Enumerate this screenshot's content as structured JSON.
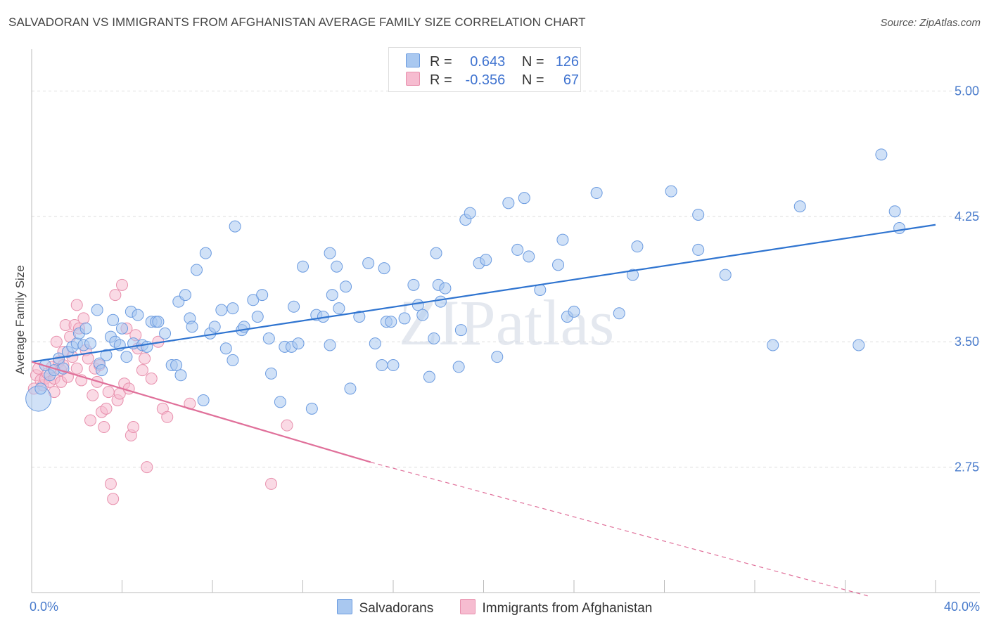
{
  "title": "SALVADORAN VS IMMIGRANTS FROM AFGHANISTAN AVERAGE FAMILY SIZE CORRELATION CHART",
  "source": "Source: ZipAtlas.com",
  "watermark": "ZIPatlas",
  "legend": {
    "r_label": "R =",
    "n_label": "N =",
    "rows": [
      {
        "r": "0.643",
        "n": "126",
        "color": "#a9c8f0"
      },
      {
        "r": "-0.356",
        "n": "67",
        "color": "#f6bcd0"
      }
    ]
  },
  "bottom_legend": [
    "Salvadorans",
    "Immigrants from Afghanistan"
  ],
  "colors": {
    "blue_fill": "#a9c8f0",
    "blue_stroke": "#6b9be0",
    "blue_line": "#2f74d0",
    "pink_fill": "#f6bcd0",
    "pink_stroke": "#e890ad",
    "pink_line": "#e0709a",
    "tick_text": "#4a7ccc",
    "grid": "#dddddd"
  },
  "chart_data": {
    "type": "scatter",
    "title": "SALVADORAN VS IMMIGRANTS FROM AFGHANISTAN AVERAGE FAMILY SIZE CORRELATION CHART",
    "xlabel": "",
    "ylabel": "Average Family Size",
    "xlim": [
      0,
      40
    ],
    "ylim": [
      2.0,
      5.25
    ],
    "x_tick_labels": [
      "0.0%",
      "40.0%"
    ],
    "y_ticks": [
      2.75,
      3.5,
      4.25,
      5.0
    ],
    "y_tick_labels": [
      "2.75",
      "3.50",
      "4.25",
      "5.00"
    ],
    "series": [
      {
        "name": "Salvadorans",
        "r": 0.643,
        "n": 126,
        "trend": {
          "x": [
            0,
            40
          ],
          "y": [
            3.38,
            4.2
          ],
          "dashed_to": null
        },
        "points": [
          [
            0.3,
            3.16,
            "l"
          ],
          [
            0.4,
            3.22
          ],
          [
            0.6,
            3.36
          ],
          [
            0.8,
            3.3
          ],
          [
            1.0,
            3.33
          ],
          [
            1.2,
            3.4
          ],
          [
            1.4,
            3.34
          ],
          [
            1.6,
            3.44
          ],
          [
            1.8,
            3.47
          ],
          [
            2.0,
            3.49
          ],
          [
            2.1,
            3.55
          ],
          [
            2.3,
            3.48
          ],
          [
            2.4,
            3.58
          ],
          [
            2.6,
            3.49
          ],
          [
            2.9,
            3.69
          ],
          [
            3.0,
            3.37
          ],
          [
            3.1,
            3.33
          ],
          [
            3.3,
            3.42
          ],
          [
            3.5,
            3.53
          ],
          [
            3.6,
            3.63
          ],
          [
            3.7,
            3.5
          ],
          [
            3.9,
            3.48
          ],
          [
            4.0,
            3.58
          ],
          [
            4.2,
            3.41
          ],
          [
            4.4,
            3.68
          ],
          [
            4.5,
            3.49
          ],
          [
            4.7,
            3.66
          ],
          [
            4.9,
            3.48
          ],
          [
            5.1,
            3.47
          ],
          [
            5.3,
            3.62
          ],
          [
            5.5,
            3.62
          ],
          [
            5.6,
            3.62
          ],
          [
            5.9,
            3.55
          ],
          [
            6.2,
            3.36
          ],
          [
            6.4,
            3.36
          ],
          [
            6.5,
            3.74
          ],
          [
            6.6,
            3.3
          ],
          [
            6.8,
            3.78
          ],
          [
            7.0,
            3.64
          ],
          [
            7.1,
            3.59
          ],
          [
            7.3,
            3.93
          ],
          [
            7.6,
            3.15
          ],
          [
            7.7,
            4.03
          ],
          [
            7.9,
            3.55
          ],
          [
            8.1,
            3.59
          ],
          [
            8.4,
            3.69
          ],
          [
            8.6,
            3.46
          ],
          [
            8.9,
            3.7
          ],
          [
            8.9,
            3.39
          ],
          [
            9.0,
            4.19
          ],
          [
            9.3,
            3.57
          ],
          [
            9.4,
            3.59
          ],
          [
            9.8,
            3.75
          ],
          [
            10.0,
            3.65
          ],
          [
            10.2,
            3.78
          ],
          [
            10.5,
            3.52
          ],
          [
            10.6,
            3.31
          ],
          [
            11.0,
            3.14
          ],
          [
            11.2,
            3.47
          ],
          [
            11.5,
            3.47
          ],
          [
            11.6,
            3.71
          ],
          [
            11.8,
            3.49
          ],
          [
            12.0,
            3.95
          ],
          [
            12.4,
            3.1
          ],
          [
            12.6,
            3.66
          ],
          [
            12.9,
            3.65
          ],
          [
            13.2,
            3.48
          ],
          [
            13.2,
            4.03
          ],
          [
            13.3,
            3.78
          ],
          [
            13.5,
            3.95
          ],
          [
            13.6,
            3.7
          ],
          [
            13.9,
            3.83
          ],
          [
            14.1,
            3.22
          ],
          [
            14.5,
            3.65
          ],
          [
            14.9,
            3.97
          ],
          [
            15.2,
            3.49
          ],
          [
            15.5,
            3.36
          ],
          [
            15.6,
            3.94
          ],
          [
            15.7,
            3.62
          ],
          [
            15.9,
            3.62
          ],
          [
            16.0,
            3.36
          ],
          [
            16.5,
            3.64
          ],
          [
            16.9,
            3.84
          ],
          [
            17.1,
            3.72
          ],
          [
            17.3,
            3.66
          ],
          [
            17.6,
            3.29
          ],
          [
            17.8,
            3.52
          ],
          [
            17.9,
            4.03
          ],
          [
            18.0,
            3.84
          ],
          [
            18.1,
            3.74
          ],
          [
            18.3,
            3.82
          ],
          [
            18.9,
            3.35
          ],
          [
            19.0,
            3.57
          ],
          [
            19.2,
            4.23
          ],
          [
            19.4,
            4.27
          ],
          [
            19.8,
            3.97
          ],
          [
            20.1,
            3.99
          ],
          [
            20.6,
            3.41
          ],
          [
            21.1,
            4.33
          ],
          [
            21.5,
            4.05
          ],
          [
            21.8,
            4.36
          ],
          [
            22.0,
            4.01
          ],
          [
            22.5,
            3.81
          ],
          [
            23.3,
            3.96
          ],
          [
            23.5,
            4.11
          ],
          [
            23.7,
            3.65
          ],
          [
            24.0,
            3.68
          ],
          [
            25.0,
            4.39
          ],
          [
            26.0,
            3.67
          ],
          [
            26.6,
            3.9
          ],
          [
            26.8,
            4.07
          ],
          [
            28.3,
            4.4
          ],
          [
            29.5,
            4.05
          ],
          [
            29.5,
            4.26
          ],
          [
            30.7,
            3.9
          ],
          [
            32.8,
            3.48
          ],
          [
            34.0,
            4.31
          ],
          [
            36.6,
            3.48
          ],
          [
            37.6,
            4.62
          ],
          [
            38.2,
            4.28
          ],
          [
            38.4,
            4.18
          ]
        ]
      },
      {
        "name": "Immigrants from Afghanistan",
        "r": -0.356,
        "n": 67,
        "trend": {
          "x": [
            0,
            15
          ],
          "y": [
            3.38,
            2.78
          ],
          "dashed_to": [
            37,
            1.98
          ]
        },
        "points": [
          [
            0.1,
            3.22
          ],
          [
            0.2,
            3.3
          ],
          [
            0.3,
            3.34
          ],
          [
            0.4,
            3.27
          ],
          [
            0.5,
            3.24
          ],
          [
            0.6,
            3.28
          ],
          [
            0.7,
            3.31
          ],
          [
            0.8,
            3.26
          ],
          [
            0.9,
            3.35
          ],
          [
            1.0,
            3.28
          ],
          [
            1.0,
            3.2
          ],
          [
            1.1,
            3.5
          ],
          [
            1.2,
            3.38
          ],
          [
            1.3,
            3.26
          ],
          [
            1.3,
            3.33
          ],
          [
            1.4,
            3.44
          ],
          [
            1.4,
            3.36
          ],
          [
            1.5,
            3.6
          ],
          [
            1.6,
            3.29
          ],
          [
            1.7,
            3.53
          ],
          [
            1.8,
            3.41
          ],
          [
            1.9,
            3.6
          ],
          [
            2.0,
            3.34
          ],
          [
            2.0,
            3.72
          ],
          [
            2.1,
            3.58
          ],
          [
            2.2,
            3.27
          ],
          [
            2.3,
            3.64
          ],
          [
            2.4,
            3.45
          ],
          [
            2.5,
            3.4
          ],
          [
            2.6,
            3.03
          ],
          [
            2.7,
            3.18
          ],
          [
            2.8,
            3.34
          ],
          [
            2.9,
            3.26
          ],
          [
            3.0,
            3.36
          ],
          [
            3.1,
            3.08
          ],
          [
            3.2,
            2.99
          ],
          [
            3.3,
            3.1
          ],
          [
            3.4,
            3.2
          ],
          [
            3.5,
            2.65
          ],
          [
            3.6,
            2.56
          ],
          [
            3.7,
            3.78
          ],
          [
            3.8,
            3.15
          ],
          [
            3.9,
            3.19
          ],
          [
            4.0,
            3.84
          ],
          [
            4.1,
            3.25
          ],
          [
            4.2,
            3.58
          ],
          [
            4.3,
            3.22
          ],
          [
            4.4,
            2.94
          ],
          [
            4.5,
            2.99
          ],
          [
            4.6,
            3.54
          ],
          [
            4.7,
            3.46
          ],
          [
            4.9,
            3.33
          ],
          [
            5.0,
            3.4
          ],
          [
            5.1,
            2.75
          ],
          [
            5.3,
            3.28
          ],
          [
            5.6,
            3.5
          ],
          [
            5.8,
            3.1
          ],
          [
            6.0,
            3.05
          ],
          [
            7.0,
            3.13
          ],
          [
            10.6,
            2.65
          ],
          [
            11.3,
            3.0
          ]
        ]
      }
    ]
  }
}
